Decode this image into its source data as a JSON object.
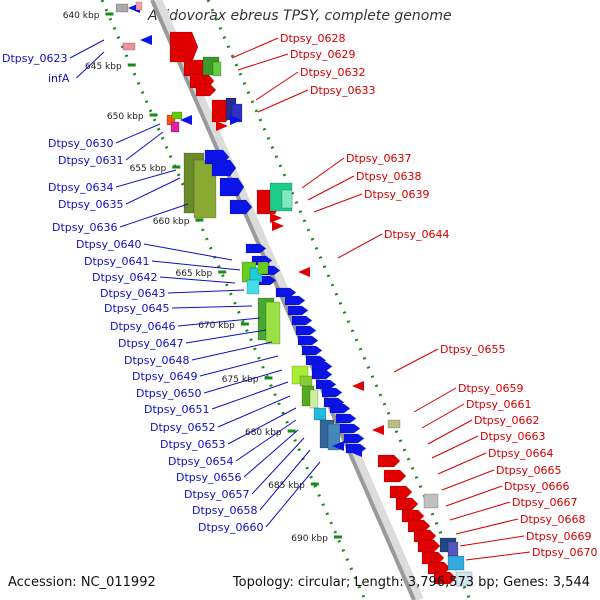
{
  "title": "Acidovorax ebreus TPSY, complete genome",
  "accession": "Accession: NC_011992",
  "summary": "Topology: circular; Length: 3,796,573 bp; Genes: 3,544",
  "colors": {
    "forward_label": "#d40000",
    "reverse_label": "#1010c0",
    "tick": "#1a8a1a",
    "backbone": "#999999"
  },
  "kbp_ticks": [
    "640 kbp",
    "645 kbp",
    "650 kbp",
    "655 kbp",
    "660 kbp",
    "665 kbp",
    "670 kbp",
    "675 kbp",
    "680 kbp",
    "685 kbp",
    "690 kbp"
  ],
  "left_labels": [
    "Dtpsy_0623",
    "infA",
    "Dtpsy_0630",
    "Dtpsy_0631",
    "Dtpsy_0634",
    "Dtpsy_0635",
    "Dtpsy_0636",
    "Dtpsy_0640",
    "Dtpsy_0641",
    "Dtpsy_0642",
    "Dtpsy_0643",
    "Dtpsy_0645",
    "Dtpsy_0646",
    "Dtpsy_0647",
    "Dtpsy_0648",
    "Dtpsy_0649",
    "Dtpsy_0650",
    "Dtpsy_0651",
    "Dtpsy_0652",
    "Dtpsy_0653",
    "Dtpsy_0654",
    "Dtpsy_0656",
    "Dtpsy_0657",
    "Dtpsy_0658",
    "Dtpsy_0660"
  ],
  "right_labels": [
    "Dtpsy_0628",
    "Dtpsy_0629",
    "Dtpsy_0632",
    "Dtpsy_0633",
    "Dtpsy_0637",
    "Dtpsy_0638",
    "Dtpsy_0639",
    "Dtpsy_0644",
    "Dtpsy_0655",
    "Dtpsy_0659",
    "Dtpsy_0661",
    "Dtpsy_0662",
    "Dtpsy_0663",
    "Dtpsy_0664",
    "Dtpsy_0665",
    "Dtpsy_0666",
    "Dtpsy_0667",
    "Dtpsy_0668",
    "Dtpsy_0669",
    "Dtpsy_0670"
  ]
}
